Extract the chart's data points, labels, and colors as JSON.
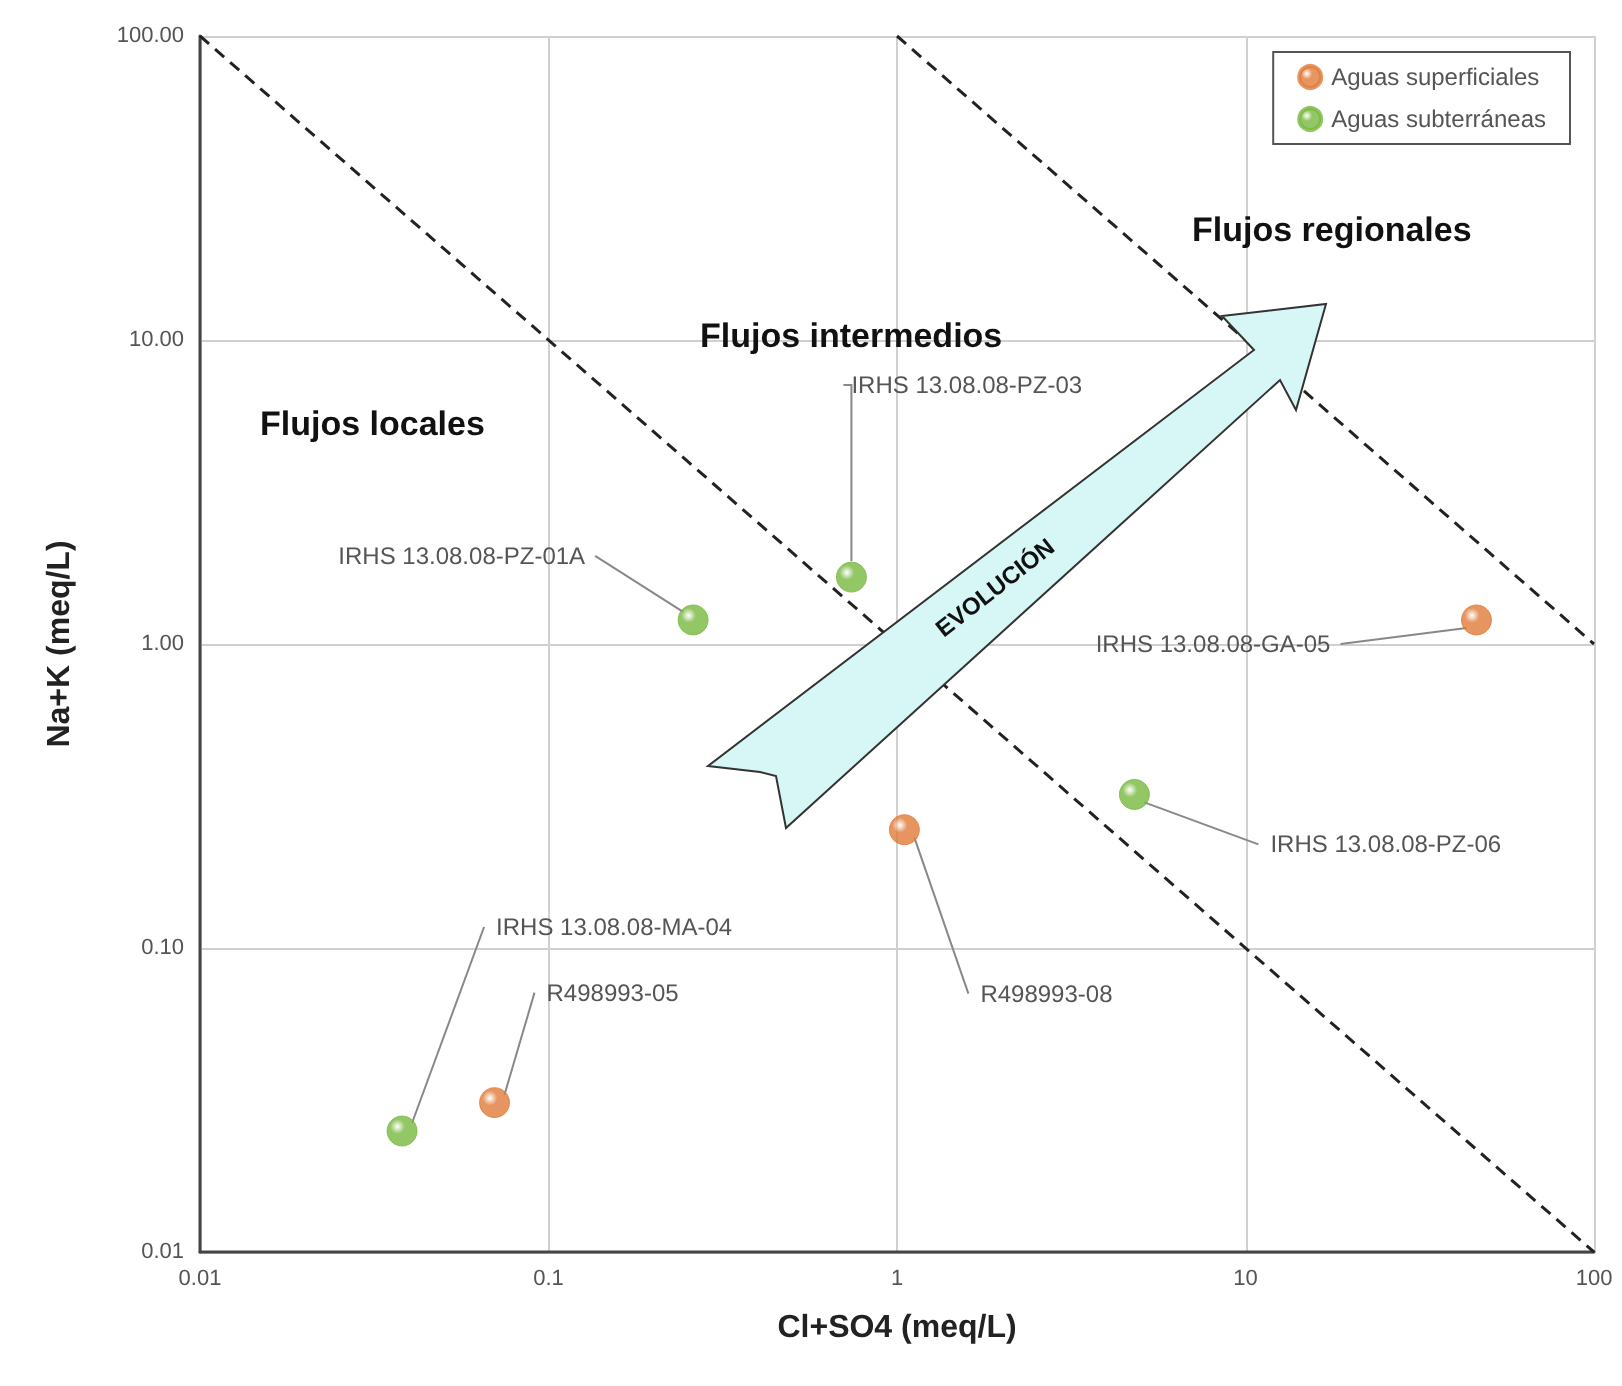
{
  "chart_data": {
    "type": "scatter",
    "xlabel": "Cl+SO4 (meq/L)",
    "ylabel": "Na+K (meq/L)",
    "log": "xy",
    "grid": true,
    "legend": "top right",
    "marker": "circle",
    "xlim": [
      0.01,
      100
    ],
    "xticks": [
      0.01,
      0.1,
      1,
      10,
      100
    ],
    "ylim": [
      0.01,
      100
    ],
    "yticks": [
      0.01,
      {
        "value": 0.1,
        "label": "0.10"
      },
      {
        "value": 1,
        "label": "1.00"
      },
      {
        "value": 10,
        "label": "10.00"
      },
      {
        "value": 100,
        "label": "100.00"
      }
    ],
    "series": [
      {
        "name": "Aguas superficiales",
        "color": "#e07b39",
        "x": [
          0.07,
          1.05,
          46
        ],
        "values": [
          0.031,
          0.245,
          1.2
        ]
      },
      {
        "name": "Aguas subterráneas",
        "color": "#78b83e",
        "x": [
          0.038,
          0.26,
          0.74,
          4.8
        ],
        "values": [
          0.025,
          1.2,
          1.66,
          0.32
        ]
      },
      {
        "type": "line",
        "color": "#222222",
        "line_style": "dashed",
        "marker": "none",
        "x": [
          0.01,
          100
        ],
        "values": [
          100,
          0.01
        ]
      },
      {
        "type": "line",
        "color": "#222222",
        "line_style": "dashed",
        "marker": "none",
        "x": [
          1,
          100
        ],
        "values": [
          100,
          1
        ]
      }
    ],
    "annotations": [
      "Flujos locales",
      "Flujos intermedios",
      "Flujos regionales",
      "EVOLUCIÓN",
      {
        "text": "IRHS 13.08.08-MA-04",
        "x": 0.038,
        "y": 0.025
      },
      {
        "text": "R498993-05",
        "x": 0.07,
        "y": 0.031
      },
      {
        "text": "IRHS 13.08.08-PZ-01A",
        "x": 0.26,
        "y": 1.2
      },
      {
        "text": "IRHS 13.08.08-PZ-03",
        "x": 0.74,
        "y": 1.66
      },
      {
        "text": "R498993-08",
        "x": 1.05,
        "y": 0.245
      },
      {
        "text": "IRHS 13.08.08-PZ-06",
        "x": 4.8,
        "y": 0.32
      },
      {
        "text": "IRHS 13.08.08-GA-05",
        "x": 46,
        "y": 1.2
      }
    ]
  }
}
